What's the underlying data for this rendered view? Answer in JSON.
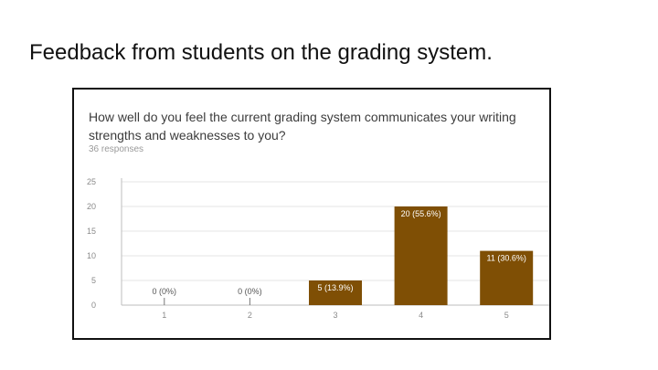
{
  "slide": {
    "title": "Feedback from students on the grading system."
  },
  "form": {
    "question": "How well do you feel the current grading system communicates your writing strengths and weaknesses to you?",
    "responses": "36 responses"
  },
  "colors": {
    "bar": "#7f4f05",
    "bar_label": "#ffffff",
    "zero_label": "#555555",
    "grid": "#e6e6e6",
    "axis": "#bdbdbd",
    "tick": "#8a8a8a"
  },
  "chart_data": {
    "type": "bar",
    "categories": [
      "1",
      "2",
      "3",
      "4",
      "5"
    ],
    "values": [
      0,
      0,
      5,
      20,
      11
    ],
    "data_labels": [
      "0 (0%)",
      "0 (0%)",
      "5 (13.9%)",
      "20 (55.6%)",
      "11 (30.6%)"
    ],
    "y_ticks": [
      "0",
      "5",
      "10",
      "15",
      "20",
      "25"
    ],
    "ylim": [
      0,
      25
    ],
    "grid": true,
    "legend": "none",
    "title": "",
    "xlabel": "",
    "ylabel": ""
  }
}
